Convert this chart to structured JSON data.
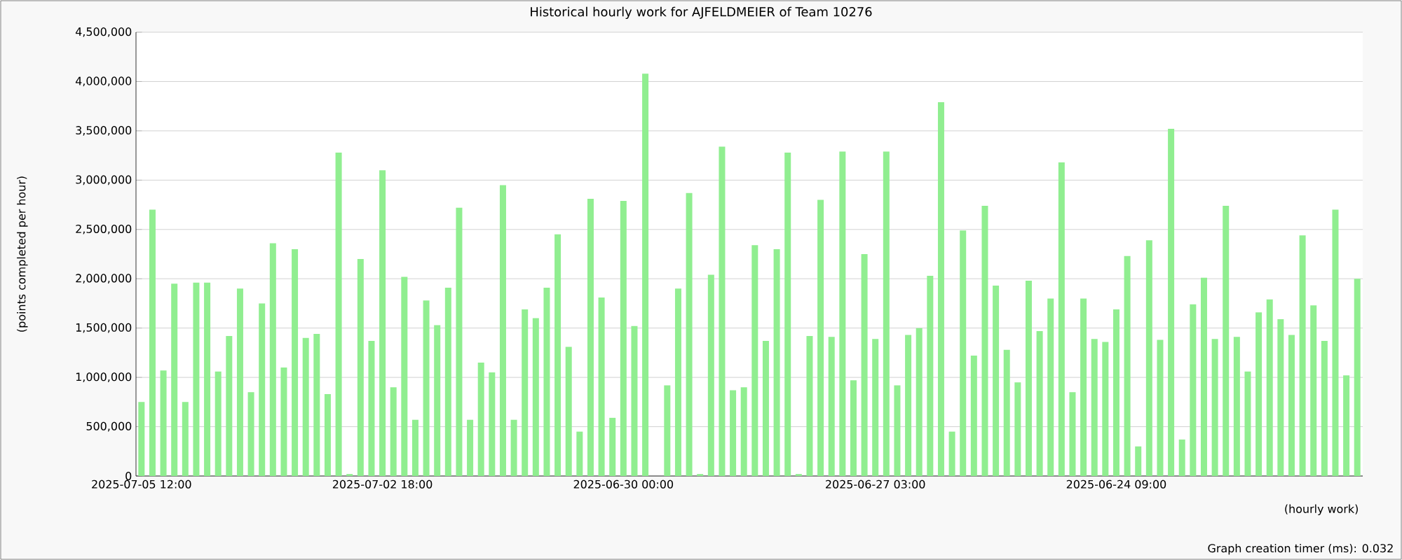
{
  "chart_data": {
    "type": "bar",
    "title": "Historical hourly work for AJFELDMEIER of Team 10276",
    "xlabel": "(hourly work)",
    "ylabel": "(points completed per hour)",
    "annotations": [
      "Graph creation timer (ms): 0.032"
    ],
    "categories": [
      "2025-07-05 12:00",
      null,
      null,
      null,
      null,
      null,
      null,
      null,
      null,
      null,
      null,
      null,
      null,
      null,
      null,
      null,
      null,
      null,
      null,
      null,
      null,
      null,
      "2025-07-02 18:00",
      null,
      null,
      null,
      null,
      null,
      null,
      null,
      null,
      null,
      null,
      null,
      null,
      null,
      null,
      null,
      null,
      null,
      null,
      null,
      null,
      null,
      "2025-06-30 00:00",
      null,
      null,
      null,
      null,
      null,
      null,
      null,
      null,
      null,
      null,
      null,
      null,
      null,
      null,
      null,
      null,
      null,
      null,
      null,
      null,
      null,
      null,
      "2025-06-27 03:00",
      null,
      null,
      null,
      null,
      null,
      null,
      null,
      null,
      null,
      null,
      null,
      null,
      null,
      null,
      null,
      null,
      null,
      null,
      null,
      null,
      null,
      "2025-06-24 09:00",
      null,
      null,
      null,
      null,
      null,
      null,
      null,
      null,
      null,
      null,
      null,
      null,
      null,
      null,
      null,
      null,
      null,
      null,
      null,
      null,
      null,
      null
    ],
    "values": [
      750000,
      2700000,
      1070000,
      1950000,
      750000,
      1960000,
      1960000,
      1060000,
      1420000,
      1900000,
      850000,
      1750000,
      2360000,
      1100000,
      2300000,
      1400000,
      1440000,
      830000,
      3280000,
      20000,
      2200000,
      1370000,
      3100000,
      900000,
      2020000,
      570000,
      1780000,
      1530000,
      1910000,
      2720000,
      570000,
      1150000,
      1050000,
      2950000,
      570000,
      1690000,
      1600000,
      1910000,
      2450000,
      1310000,
      450000,
      2810000,
      1810000,
      590000,
      2790000,
      1520000,
      4080000,
      0,
      920000,
      1900000,
      2870000,
      20000,
      2040000,
      3340000,
      870000,
      900000,
      2340000,
      1370000,
      2300000,
      3280000,
      20000,
      1420000,
      2800000,
      1410000,
      3290000,
      970000,
      2250000,
      1390000,
      3290000,
      920000,
      1430000,
      1500000,
      2030000,
      3790000,
      450000,
      2490000,
      1220000,
      2740000,
      1930000,
      1280000,
      950000,
      1980000,
      1470000,
      1800000,
      3180000,
      850000,
      1800000,
      1390000,
      1360000,
      1690000,
      2230000,
      300000,
      2390000,
      1380000,
      3520000,
      370000,
      1740000,
      2010000,
      1390000,
      2740000,
      1410000,
      1060000,
      1660000,
      1790000,
      1590000,
      1430000,
      2440000,
      1730000,
      1370000,
      2700000,
      1020000,
      2000000
    ],
    "color": "#90ee90",
    "ylim": [
      0,
      4500000
    ],
    "yticks": [
      {
        "value": 0,
        "label": "0"
      },
      {
        "value": 500000,
        "label": "500,000"
      },
      {
        "value": 1000000,
        "label": "1,000,000"
      },
      {
        "value": 1500000,
        "label": "1,500,000"
      },
      {
        "value": 2000000,
        "label": "2,000,000"
      },
      {
        "value": 2500000,
        "label": "2,500,000"
      },
      {
        "value": 3000000,
        "label": "3,000,000"
      },
      {
        "value": 3500000,
        "label": "3,500,000"
      },
      {
        "value": 4000000,
        "label": "4,000,000"
      },
      {
        "value": 4500000,
        "label": "4,500,000"
      }
    ],
    "grid": "y"
  }
}
